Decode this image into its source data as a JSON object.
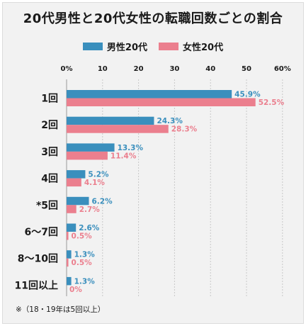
{
  "title": "20代男性と20代女性の転職回数ごとの割合",
  "note": "※（18・19年は5回以上）",
  "colors": {
    "male": "#3a8fbd",
    "female": "#eb7f8e"
  },
  "chart_data": {
    "type": "bar",
    "orientation": "horizontal",
    "title": "20代男性と20代女性の転職回数ごとの割合",
    "categories": [
      "1回",
      "2回",
      "3回",
      "4回",
      "*5回",
      "6〜7回",
      "8〜10回",
      "11回以上"
    ],
    "series": [
      {
        "name": "男性20代",
        "values": [
          45.9,
          24.3,
          13.3,
          5.2,
          6.2,
          2.6,
          1.3,
          1.3
        ],
        "labels": [
          "45.9%",
          "24.3%",
          "13.3%",
          "5.2%",
          "6.2%",
          "2.6%",
          "1.3%",
          "1.3%"
        ]
      },
      {
        "name": "女性20代",
        "values": [
          52.5,
          28.3,
          11.4,
          4.1,
          2.7,
          0.5,
          0.5,
          0
        ],
        "labels": [
          "52.5%",
          "28.3%",
          "11.4%",
          "4.1%",
          "2.7%",
          "0.5%",
          "0.5%",
          "0%"
        ]
      }
    ],
    "xlim": [
      0,
      60
    ],
    "xticks": [
      "0%",
      "10",
      "20",
      "30",
      "40",
      "50",
      "60%"
    ],
    "grid": true,
    "legend_position": "top-center"
  }
}
